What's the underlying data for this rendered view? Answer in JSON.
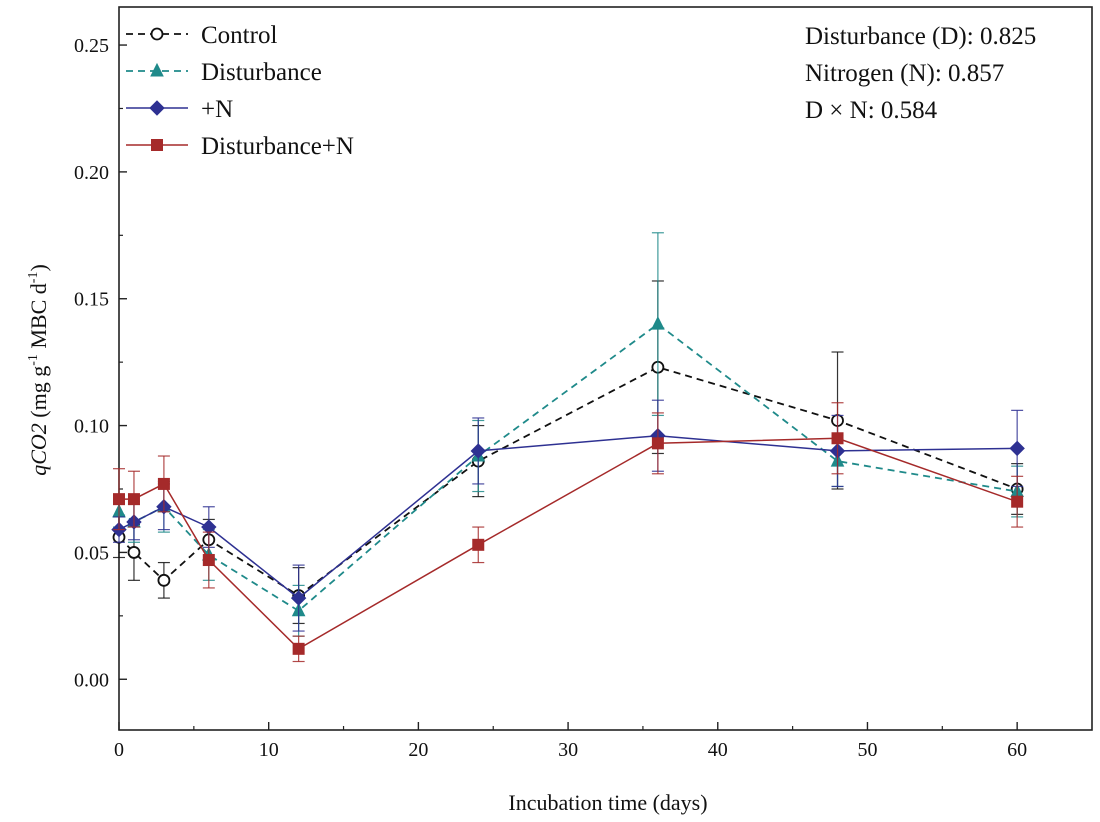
{
  "chart_data": {
    "type": "line",
    "title": "",
    "xlabel": "Incubation time (days)",
    "ylabel": {
      "italic": "qCO2",
      "part1": " (mg g",
      "sup1": "-1",
      "part2": " MBC d",
      "sup2": "-1",
      "part3": ")"
    },
    "xlim": [
      0,
      65
    ],
    "ylim": [
      -0.02,
      0.265
    ],
    "x_ticks": [
      0,
      10,
      20,
      30,
      40,
      50,
      60
    ],
    "x_tick_labels": [
      "0",
      "10",
      "20",
      "30",
      "40",
      "50",
      "60"
    ],
    "y_ticks": [
      0.0,
      0.05,
      0.1,
      0.15,
      0.2,
      0.25
    ],
    "y_tick_labels": [
      "0.00",
      "0.05",
      "0.10",
      "0.15",
      "0.20",
      "0.25"
    ],
    "legend_position": "top-left",
    "series": [
      {
        "name": "Control",
        "color": "#111111",
        "dash": "dashed",
        "marker": "circle-open",
        "x": [
          0,
          1,
          3,
          6,
          12,
          24,
          36,
          48,
          60
        ],
        "y": [
          0.056,
          0.05,
          0.039,
          0.055,
          0.033,
          0.086,
          0.123,
          0.102,
          0.075
        ],
        "err": [
          0.008,
          0.011,
          0.007,
          0.008,
          0.011,
          0.014,
          0.034,
          0.027,
          0.01
        ]
      },
      {
        "name": "Disturbance",
        "color": "#1f8a8a",
        "dash": "dashed",
        "marker": "triangle",
        "x": [
          0,
          1,
          3,
          6,
          12,
          24,
          36,
          48,
          60
        ],
        "y": [
          0.066,
          0.062,
          0.068,
          0.049,
          0.027,
          0.088,
          0.14,
          0.086,
          0.074
        ],
        "err": [
          0.006,
          0.008,
          0.01,
          0.01,
          0.01,
          0.014,
          0.036,
          0.01,
          0.01
        ]
      },
      {
        "name": "+N",
        "color": "#2e3192",
        "dash": "solid",
        "marker": "diamond",
        "x": [
          0,
          1,
          3,
          6,
          12,
          24,
          36,
          48,
          60
        ],
        "y": [
          0.059,
          0.062,
          0.068,
          0.06,
          0.032,
          0.09,
          0.096,
          0.09,
          0.091
        ],
        "err": [
          0.005,
          0.007,
          0.009,
          0.008,
          0.013,
          0.013,
          0.014,
          0.014,
          0.015
        ]
      },
      {
        "name": "Disturbance+N",
        "color": "#a52a2a",
        "dash": "solid",
        "marker": "square",
        "x": [
          0,
          1,
          3,
          6,
          12,
          24,
          36,
          48,
          60
        ],
        "y": [
          0.071,
          0.071,
          0.077,
          0.047,
          0.012,
          0.053,
          0.093,
          0.095,
          0.07
        ],
        "err": [
          0.012,
          0.011,
          0.011,
          0.011,
          0.005,
          0.007,
          0.012,
          0.014,
          0.01
        ]
      }
    ],
    "annotations": [
      "Disturbance (D): 0.825",
      "Nitrogen (N): 0.857",
      "D × N: 0.584"
    ]
  }
}
